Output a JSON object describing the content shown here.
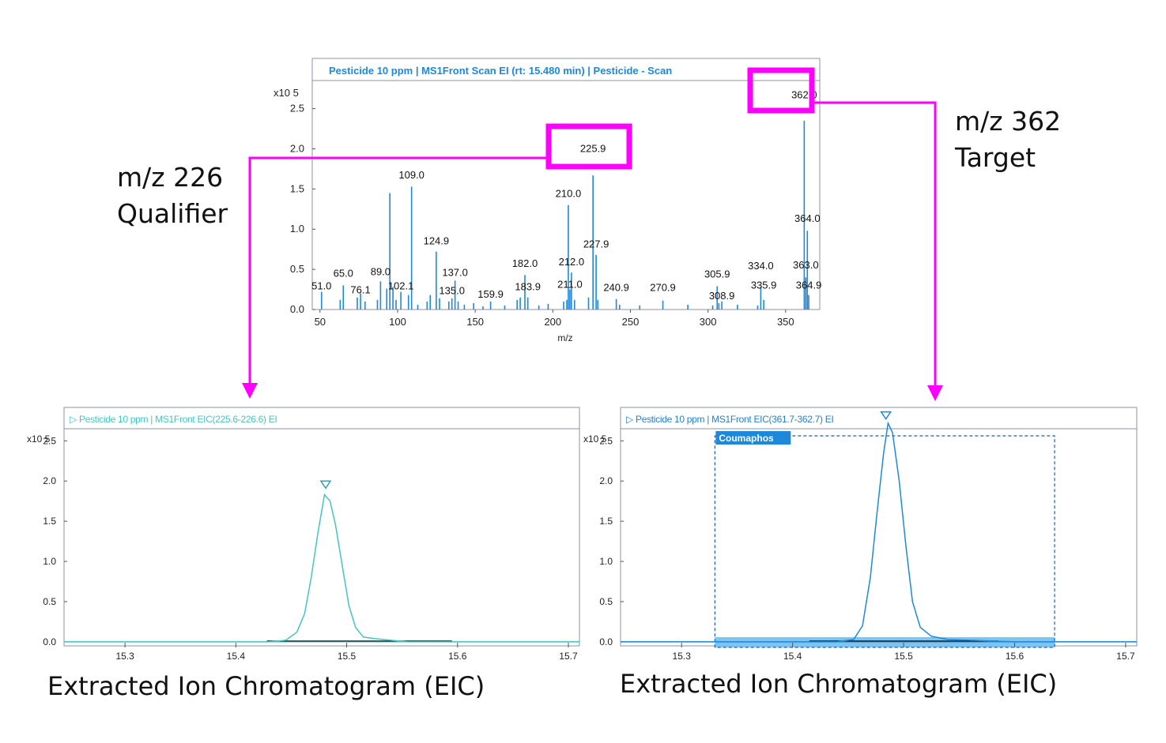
{
  "colors": {
    "accent": "#ff00ff",
    "spectrum": "#1f88d8",
    "qualifier_trace": "#44c4c4",
    "target_trace": "#1f88d8",
    "title_spectrum": "#1f88d8",
    "title_qualifier": "#44c4c4",
    "title_target": "#2a7fc4",
    "baseline": "#111111",
    "band": "#7cc4f2"
  },
  "labels": {
    "qualifier": [
      "m/z 226",
      "Qualifier"
    ],
    "target": [
      "m/z 362",
      "Target"
    ]
  },
  "captions": {
    "left": "Extracted Ion Chromatogram (EIC)",
    "right": "Extracted Ion Chromatogram (EIC)"
  },
  "chart_data": [
    {
      "type": "bar",
      "title": "Pesticide 10 ppm | MS1Front Scan EI (rt: 15.480 min) | Pesticide - Scan",
      "xlabel": "m/z",
      "y_multiplier_label": "x10 5",
      "xlim": [
        45,
        372
      ],
      "ylim": [
        0,
        2.85
      ],
      "x_ticks": [
        50,
        100,
        150,
        200,
        250,
        300,
        350
      ],
      "y_ticks": [
        0.0,
        0.5,
        1.0,
        1.5,
        2.0,
        2.5
      ],
      "peaks": [
        {
          "x": 51.0,
          "y": 0.22
        },
        {
          "x": 63.0,
          "y": 0.12
        },
        {
          "x": 65.0,
          "y": 0.3
        },
        {
          "x": 74.0,
          "y": 0.15
        },
        {
          "x": 76.1,
          "y": 0.2
        },
        {
          "x": 79.0,
          "y": 0.1
        },
        {
          "x": 87.0,
          "y": 0.12
        },
        {
          "x": 89.0,
          "y": 0.35
        },
        {
          "x": 93.0,
          "y": 0.26
        },
        {
          "x": 95.0,
          "y": 1.45
        },
        {
          "x": 97.0,
          "y": 0.28
        },
        {
          "x": 99.0,
          "y": 0.12
        },
        {
          "x": 102.1,
          "y": 0.22
        },
        {
          "x": 107.0,
          "y": 0.18
        },
        {
          "x": 109.0,
          "y": 1.53
        },
        {
          "x": 113.0,
          "y": 0.06
        },
        {
          "x": 119.0,
          "y": 0.1
        },
        {
          "x": 121.0,
          "y": 0.18
        },
        {
          "x": 124.9,
          "y": 0.72
        },
        {
          "x": 127.0,
          "y": 0.14
        },
        {
          "x": 133.0,
          "y": 0.1
        },
        {
          "x": 135.0,
          "y": 0.14
        },
        {
          "x": 137.0,
          "y": 0.36
        },
        {
          "x": 139.0,
          "y": 0.1
        },
        {
          "x": 143.0,
          "y": 0.06
        },
        {
          "x": 149.0,
          "y": 0.08
        },
        {
          "x": 155.0,
          "y": 0.04
        },
        {
          "x": 159.9,
          "y": 0.1
        },
        {
          "x": 169.0,
          "y": 0.05
        },
        {
          "x": 177.0,
          "y": 0.12
        },
        {
          "x": 179.0,
          "y": 0.15
        },
        {
          "x": 182.0,
          "y": 0.43
        },
        {
          "x": 183.9,
          "y": 0.15
        },
        {
          "x": 191.0,
          "y": 0.05
        },
        {
          "x": 197.0,
          "y": 0.07
        },
        {
          "x": 207.0,
          "y": 0.1
        },
        {
          "x": 209.0,
          "y": 0.12
        },
        {
          "x": 210.0,
          "y": 1.3
        },
        {
          "x": 211.0,
          "y": 0.25
        },
        {
          "x": 212.0,
          "y": 0.46
        },
        {
          "x": 214.0,
          "y": 0.12
        },
        {
          "x": 223.0,
          "y": 0.15
        },
        {
          "x": 225.9,
          "y": 1.67
        },
        {
          "x": 227.9,
          "y": 0.68
        },
        {
          "x": 229.0,
          "y": 0.12
        },
        {
          "x": 240.9,
          "y": 0.13
        },
        {
          "x": 243.0,
          "y": 0.06
        },
        {
          "x": 256.0,
          "y": 0.05
        },
        {
          "x": 270.9,
          "y": 0.11
        },
        {
          "x": 287.0,
          "y": 0.06
        },
        {
          "x": 303.0,
          "y": 0.05
        },
        {
          "x": 305.9,
          "y": 0.29
        },
        {
          "x": 307.0,
          "y": 0.08
        },
        {
          "x": 308.9,
          "y": 0.1
        },
        {
          "x": 319.0,
          "y": 0.06
        },
        {
          "x": 332.0,
          "y": 0.05
        },
        {
          "x": 334.0,
          "y": 0.28
        },
        {
          "x": 335.9,
          "y": 0.12
        },
        {
          "x": 362.0,
          "y": 2.35
        },
        {
          "x": 363.0,
          "y": 0.4
        },
        {
          "x": 364.0,
          "y": 0.98
        },
        {
          "x": 364.9,
          "y": 0.18
        }
      ],
      "annotations": [
        {
          "text": "51.0",
          "x": 51.0,
          "y": 0.22
        },
        {
          "text": "65.0",
          "x": 65.0,
          "y": 0.38
        },
        {
          "text": "76.1",
          "x": 76.1,
          "y": 0.17
        },
        {
          "text": "89.0",
          "x": 89.0,
          "y": 0.4
        },
        {
          "text": "102.1",
          "x": 102.1,
          "y": 0.22
        },
        {
          "text": "109.0",
          "x": 109.0,
          "y": 1.6
        },
        {
          "text": "124.9",
          "x": 124.9,
          "y": 0.78
        },
        {
          "text": "137.0",
          "x": 137.0,
          "y": 0.39
        },
        {
          "text": "135.0",
          "x": 135.0,
          "y": 0.16
        },
        {
          "text": "159.9",
          "x": 159.9,
          "y": 0.12
        },
        {
          "text": "182.0",
          "x": 182.0,
          "y": 0.5
        },
        {
          "text": "183.9",
          "x": 183.9,
          "y": 0.21
        },
        {
          "text": "210.0",
          "x": 210.0,
          "y": 1.37
        },
        {
          "text": "212.0",
          "x": 212.0,
          "y": 0.52
        },
        {
          "text": "211.0",
          "x": 211.0,
          "y": 0.24
        },
        {
          "text": "225.9",
          "x": 225.9,
          "y": 1.93
        },
        {
          "text": "227.9",
          "x": 227.9,
          "y": 0.74
        },
        {
          "text": "240.9",
          "x": 240.9,
          "y": 0.2
        },
        {
          "text": "270.9",
          "x": 270.9,
          "y": 0.2
        },
        {
          "text": "305.9",
          "x": 305.9,
          "y": 0.37
        },
        {
          "text": "308.9",
          "x": 308.9,
          "y": 0.1
        },
        {
          "text": "334.0",
          "x": 334.0,
          "y": 0.47
        },
        {
          "text": "335.9",
          "x": 335.9,
          "y": 0.23
        },
        {
          "text": "362.0",
          "x": 362.0,
          "y": 2.6
        },
        {
          "text": "364.0",
          "x": 364.0,
          "y": 1.06
        },
        {
          "text": "363.0",
          "x": 363.0,
          "y": 0.48
        },
        {
          "text": "364.9",
          "x": 364.9,
          "y": 0.23
        }
      ],
      "highlights": [
        "225.9",
        "362.0"
      ]
    },
    {
      "type": "line",
      "title": "Pesticide 10 ppm | MS1Front EIC(225.6-226.6) EI",
      "y_multiplier_label": "x10 5",
      "xlim": [
        15.245,
        15.71
      ],
      "ylim": [
        -0.05,
        2.65
      ],
      "x_ticks": [
        15.3,
        15.4,
        15.5,
        15.6,
        15.7
      ],
      "y_ticks": [
        0.0,
        0.5,
        1.0,
        1.5,
        2.0,
        2.5
      ],
      "x": [
        15.245,
        15.43,
        15.445,
        15.455,
        15.462,
        15.468,
        15.474,
        15.48,
        15.485,
        15.49,
        15.496,
        15.502,
        15.508,
        15.515,
        15.525,
        15.54,
        15.555,
        15.71
      ],
      "y": [
        0.0,
        0.0,
        0.02,
        0.12,
        0.35,
        0.8,
        1.35,
        1.83,
        1.75,
        1.45,
        0.95,
        0.45,
        0.18,
        0.06,
        0.04,
        0.02,
        0.0,
        0.0
      ],
      "baseline_range": [
        15.428,
        15.595
      ],
      "apex": {
        "x": 15.481,
        "y": 1.96
      }
    },
    {
      "type": "line",
      "title": "Pesticide 10 ppm | MS1Front EIC(361.7-362.7) EI",
      "y_multiplier_label": "x10 5",
      "xlim": [
        15.245,
        15.71
      ],
      "ylim": [
        -0.05,
        2.65
      ],
      "x_ticks": [
        15.3,
        15.4,
        15.5,
        15.6,
        15.7
      ],
      "y_ticks": [
        0.0,
        0.5,
        1.0,
        1.5,
        2.0,
        2.5
      ],
      "x": [
        15.245,
        15.44,
        15.455,
        15.463,
        15.47,
        15.476,
        15.482,
        15.486,
        15.49,
        15.496,
        15.502,
        15.508,
        15.515,
        15.525,
        15.54,
        15.56,
        15.58,
        15.6,
        15.71
      ],
      "y": [
        0.0,
        0.0,
        0.03,
        0.2,
        0.8,
        1.6,
        2.35,
        2.72,
        2.6,
        2.0,
        1.2,
        0.5,
        0.18,
        0.07,
        0.03,
        0.02,
        0.01,
        0.0,
        0.0
      ],
      "baseline_range": [
        15.415,
        15.585
      ],
      "apex": {
        "x": 15.484,
        "y": 2.82
      },
      "band_range": [
        15.33,
        15.636
      ],
      "compound_label": "Coumaphos"
    }
  ]
}
